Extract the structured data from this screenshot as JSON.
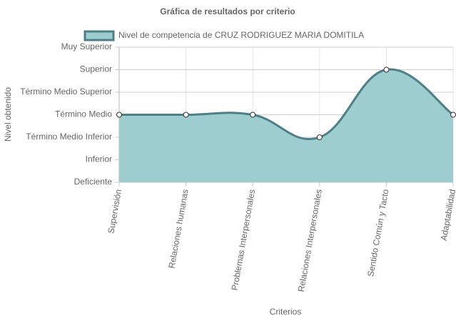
{
  "chart_data": {
    "type": "area",
    "title": "Gráfica de resultados por criterio",
    "x_label": "Criterios",
    "y_label": "Nivel obtenido",
    "categories": [
      "Supervisión",
      "Relaciones humanas",
      "Problemas Interpersonales",
      "Relaciones Interpersonales",
      "Sentido Común y Tacto",
      "Adaptabilidad"
    ],
    "series": [
      {
        "name": "Nivel de competencia de CRUZ RODRIGUEZ MARIA DOMITILA",
        "color": "#4f7f86",
        "fill_color": "#9ecdd0",
        "values": [
          3,
          3,
          3,
          2,
          5,
          3
        ]
      }
    ],
    "ylim": [
      0,
      6
    ],
    "yticks": [
      {
        "value": 0,
        "label": "Deficiente"
      },
      {
        "value": 1,
        "label": "Inferior"
      },
      {
        "value": 2,
        "label": "Término Medio Inferior"
      },
      {
        "value": 3,
        "label": "Término Medio"
      },
      {
        "value": 4,
        "label": "Término Medio Superior"
      },
      {
        "value": 5,
        "label": "Superior"
      },
      {
        "value": 6,
        "label": "Muy Superior"
      }
    ],
    "grid": true
  }
}
